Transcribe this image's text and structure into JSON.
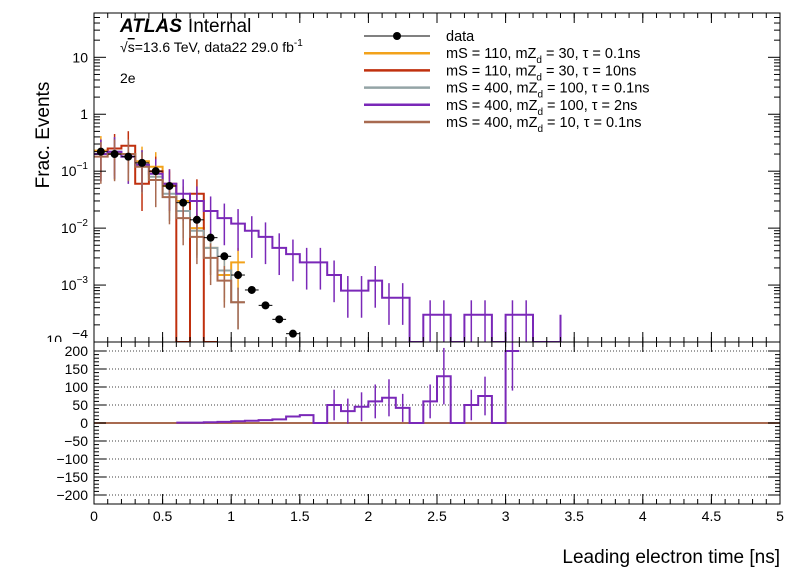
{
  "chart_data": [
    {
      "panel": "upper",
      "type": "line",
      "ylabel": "Frac. Events",
      "yscale": "log",
      "ylim": [
        0.0001,
        60
      ],
      "xlim": [
        0,
        5
      ],
      "yticks": [
        {
          "value": 0.001,
          "base": "10",
          "exp": "−3"
        },
        {
          "value": 0.01,
          "base": "10",
          "exp": "−2"
        },
        {
          "value": 0.1,
          "base": "10",
          "exp": "−1"
        },
        {
          "value": 1,
          "base": "1",
          "exp": ""
        },
        {
          "value": 10,
          "base": "10",
          "exp": ""
        }
      ],
      "label_bottom_clipped": "10",
      "atlas_label": "ATLAS",
      "atlas_sublabel": "Internal",
      "energy_info": {
        "sqrt": "√",
        "s": "s",
        "main": "=13.6 TeV, data22 29.0 fb",
        "sup": "-1"
      },
      "channel": "2e",
      "data": {
        "name": "data",
        "x": [
          0.05,
          0.15,
          0.25,
          0.35,
          0.45,
          0.55,
          0.65,
          0.75,
          0.85,
          0.95,
          1.05,
          1.15,
          1.25,
          1.35,
          1.45
        ],
        "y": [
          0.22,
          0.2,
          0.18,
          0.14,
          0.1,
          0.055,
          0.028,
          0.014,
          0.0068,
          0.0032,
          0.0015,
          0.00082,
          0.00044,
          0.00025,
          0.00014
        ]
      },
      "series": [
        {
          "name": "mS = 110, mZ_d = 30, τ = 0.1ns",
          "legend": {
            "a": "mS = 110, mZ",
            "sub": "d",
            "b": " = 30, τ = 0.1ns"
          },
          "color": "#f2a21b",
          "edges": [
            0,
            0.1,
            0.2,
            0.3,
            0.4,
            0.5,
            0.6,
            0.7,
            0.8,
            0.9,
            1.0,
            1.1
          ],
          "values": [
            0.23,
            0.21,
            0.2,
            0.15,
            0.12,
            0.055,
            0.03,
            0.01,
            0.0045,
            0.0015,
            0.0025
          ]
        },
        {
          "name": "mS = 110, mZ_d = 30, τ = 10ns",
          "legend": {
            "a": "mS = 110, mZ",
            "sub": "d",
            "b": " = 30, τ = 10ns"
          },
          "color": "#c0300e",
          "edges": [
            0,
            0.1,
            0.2,
            0.3,
            0.4,
            0.5,
            0.6,
            0.7,
            0.8,
            0.9
          ],
          "values": [
            0.2,
            0.25,
            0.28,
            0.06,
            0.1,
            0.06,
            0.0001,
            0.04,
            0.0001
          ]
        },
        {
          "name": "mS = 400, mZ_d = 100, τ = 0.1ns",
          "legend": {
            "a": "mS = 400, mZ",
            "sub": "d",
            "b": " = 100, τ = 0.1ns"
          },
          "color": "#94a4a6",
          "edges": [
            0,
            0.1,
            0.2,
            0.3,
            0.4,
            0.5,
            0.6,
            0.7,
            0.8,
            0.9,
            1.0,
            1.1
          ],
          "values": [
            0.2,
            0.22,
            0.18,
            0.13,
            0.08,
            0.04,
            0.02,
            0.009,
            0.0045,
            0.0018,
            0.0005
          ]
        },
        {
          "name": "mS = 400, mZ_d = 100, τ = 2ns",
          "legend": {
            "a": "mS = 400, mZ",
            "sub": "d",
            "b": " = 100, τ = 2ns"
          },
          "color": "#7a28b8",
          "edges": [
            0,
            0.1,
            0.2,
            0.3,
            0.4,
            0.5,
            0.6,
            0.7,
            0.8,
            0.9,
            1.0,
            1.1,
            1.2,
            1.3,
            1.4,
            1.5,
            1.6,
            1.7,
            1.8,
            1.9,
            2.0,
            2.1,
            2.2,
            2.3,
            2.4,
            2.5,
            2.6,
            2.7,
            2.8,
            2.9,
            3.0,
            3.1,
            3.2,
            3.3,
            3.4
          ],
          "values": [
            0.2,
            0.22,
            0.18,
            0.13,
            0.09,
            0.06,
            0.04,
            0.03,
            0.02,
            0.015,
            0.012,
            0.009,
            0.007,
            0.0045,
            0.0035,
            0.0025,
            0.0025,
            0.0015,
            0.0008,
            0.0008,
            0.0012,
            0.0006,
            0.0006,
            0.0001,
            0.0003,
            0.0003,
            0.0001,
            0.0003,
            0.0003,
            0.0001,
            0.0003,
            0.0003,
            0.0001,
            0.0001,
            0.0003
          ]
        },
        {
          "name": "mS = 400, mZ_d = 10, τ = 0.1ns",
          "legend": {
            "a": "mS = 400, mZ",
            "sub": "d",
            "b": " = 10, τ = 0.1ns"
          },
          "color": "#a86a50",
          "edges": [
            0,
            0.1,
            0.2,
            0.3,
            0.4,
            0.5,
            0.6,
            0.7,
            0.8,
            0.9,
            1.0,
            1.1
          ],
          "values": [
            0.18,
            0.2,
            0.2,
            0.12,
            0.07,
            0.035,
            0.015,
            0.007,
            0.003,
            0.0012,
            0.0005
          ]
        }
      ]
    },
    {
      "panel": "ratio",
      "type": "line",
      "xlabel": "Leading electron time [ns]",
      "xlim": [
        0,
        5
      ],
      "ylim": [
        -225,
        225
      ],
      "xticks": [
        0,
        0.5,
        1,
        1.5,
        2,
        2.5,
        3,
        3.5,
        4,
        4.5,
        5
      ],
      "xticklabels": [
        "0",
        "0.5",
        "1",
        "1.5",
        "2",
        "2.5",
        "3",
        "3.5",
        "4",
        "4.5",
        "5"
      ],
      "yticks": [
        -200,
        -150,
        -100,
        -50,
        0,
        50,
        100,
        150,
        200
      ],
      "grid": true,
      "series": [
        {
          "name": "mS = 110, mZ_d = 30, τ = 0.1ns",
          "color": "#f2a21b",
          "x": [
            0,
            5
          ],
          "values": [
            0,
            0
          ]
        },
        {
          "name": "mS = 110, mZ_d = 30, τ = 10ns",
          "color": "#c0300e",
          "x": [
            0,
            5
          ],
          "values": [
            0,
            0
          ]
        },
        {
          "name": "mS = 400, mZ_d = 100, τ = 0.1ns",
          "color": "#94a4a6",
          "x": [
            0,
            5
          ],
          "values": [
            0,
            0
          ]
        },
        {
          "name": "mS = 400, mZ_d = 10, τ = 0.1ns",
          "color": "#a86a50",
          "x": [
            0,
            5
          ],
          "values": [
            0,
            0
          ]
        },
        {
          "name": "mS = 400, mZ_d = 100, τ = 2ns",
          "color": "#7a28b8",
          "edges": [
            0.6,
            0.7,
            0.8,
            0.9,
            1.0,
            1.1,
            1.2,
            1.3,
            1.4,
            1.5,
            1.6,
            1.7,
            1.8,
            1.9,
            2.0,
            2.1,
            2.2,
            2.3,
            2.4,
            2.5,
            2.6,
            2.7,
            2.8,
            2.9,
            3.0,
            3.1
          ],
          "values": [
            1,
            1,
            2,
            3,
            5,
            6,
            8,
            10,
            18,
            22,
            0,
            50,
            33,
            45,
            60,
            70,
            42,
            0,
            60,
            130,
            0,
            50,
            75,
            0,
            200
          ]
        }
      ]
    }
  ]
}
